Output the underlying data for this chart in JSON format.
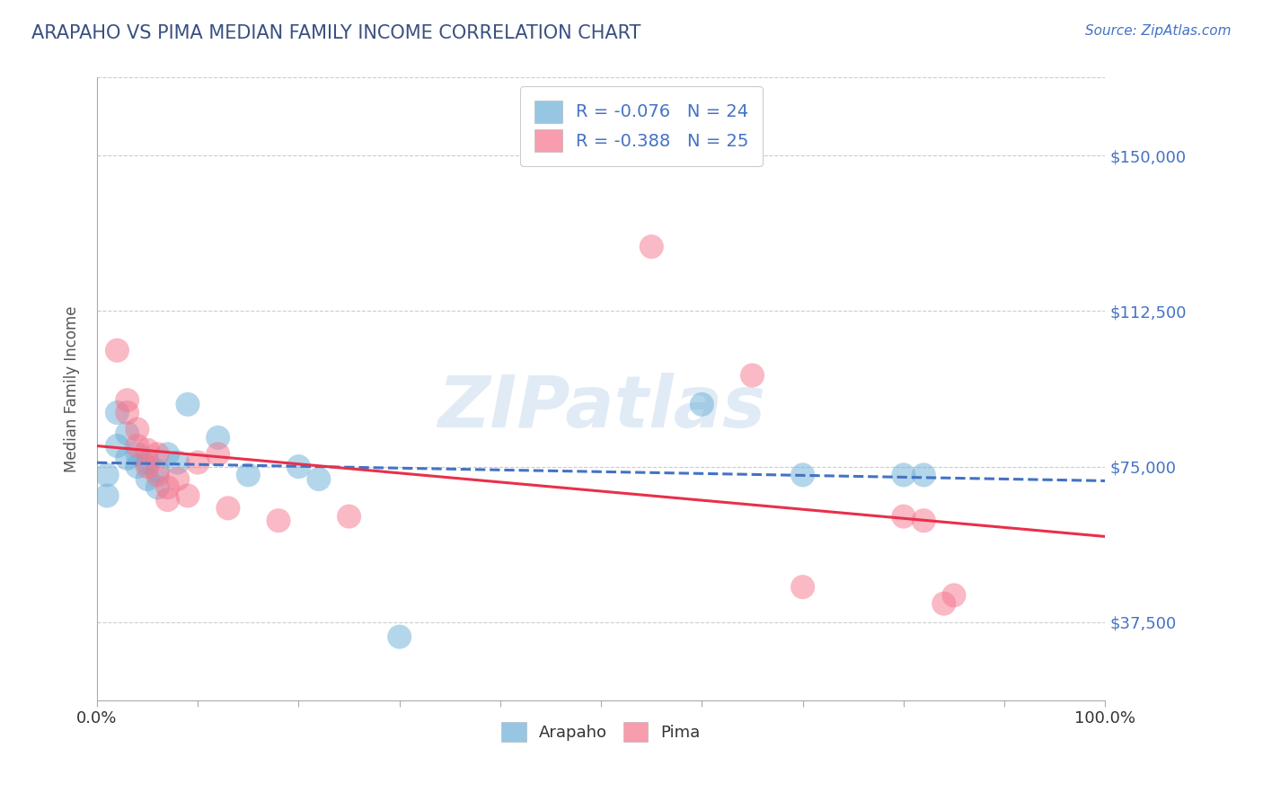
{
  "title": "ARAPAHO VS PIMA MEDIAN FAMILY INCOME CORRELATION CHART",
  "source": "Source: ZipAtlas.com",
  "ylabel": "Median Family Income",
  "xlim": [
    0.0,
    1.0
  ],
  "ylim": [
    18750,
    168750
  ],
  "yticks": [
    37500,
    75000,
    112500,
    150000
  ],
  "ytick_labels": [
    "$37,500",
    "$75,000",
    "$112,500",
    "$150,000"
  ],
  "xtick_labels": [
    "0.0%",
    "100.0%"
  ],
  "watermark": "ZIPatlas",
  "legend_labels": [
    "R = -0.076   N = 24",
    "R = -0.388   N = 25"
  ],
  "arapaho_color": "#6baed6",
  "pima_color": "#f4748c",
  "arapaho_scatter": [
    [
      0.01,
      68000
    ],
    [
      0.01,
      73000
    ],
    [
      0.02,
      80000
    ],
    [
      0.02,
      88000
    ],
    [
      0.03,
      77000
    ],
    [
      0.03,
      83000
    ],
    [
      0.04,
      78000
    ],
    [
      0.04,
      75000
    ],
    [
      0.05,
      76000
    ],
    [
      0.05,
      72000
    ],
    [
      0.06,
      74000
    ],
    [
      0.06,
      70000
    ],
    [
      0.07,
      78000
    ],
    [
      0.08,
      76000
    ],
    [
      0.09,
      90000
    ],
    [
      0.12,
      82000
    ],
    [
      0.15,
      73000
    ],
    [
      0.2,
      75000
    ],
    [
      0.22,
      72000
    ],
    [
      0.3,
      34000
    ],
    [
      0.6,
      90000
    ],
    [
      0.7,
      73000
    ],
    [
      0.8,
      73000
    ],
    [
      0.82,
      73000
    ]
  ],
  "pima_scatter": [
    [
      0.02,
      103000
    ],
    [
      0.03,
      91000
    ],
    [
      0.03,
      88000
    ],
    [
      0.04,
      84000
    ],
    [
      0.04,
      80000
    ],
    [
      0.05,
      79000
    ],
    [
      0.05,
      75000
    ],
    [
      0.06,
      78000
    ],
    [
      0.06,
      73000
    ],
    [
      0.07,
      70000
    ],
    [
      0.07,
      67000
    ],
    [
      0.08,
      72000
    ],
    [
      0.09,
      68000
    ],
    [
      0.1,
      76000
    ],
    [
      0.12,
      78000
    ],
    [
      0.13,
      65000
    ],
    [
      0.18,
      62000
    ],
    [
      0.25,
      63000
    ],
    [
      0.55,
      128000
    ],
    [
      0.65,
      97000
    ],
    [
      0.7,
      46000
    ],
    [
      0.8,
      63000
    ],
    [
      0.82,
      62000
    ],
    [
      0.84,
      42000
    ],
    [
      0.85,
      44000
    ]
  ],
  "arapaho_line_color": "#4472c4",
  "pima_line_color": "#e8304a",
  "grid_color": "#cccccc",
  "background_color": "#ffffff",
  "title_color": "#3a5080",
  "source_color": "#4472c4",
  "axis_label_color": "#555555",
  "tick_label_color": "#333333"
}
